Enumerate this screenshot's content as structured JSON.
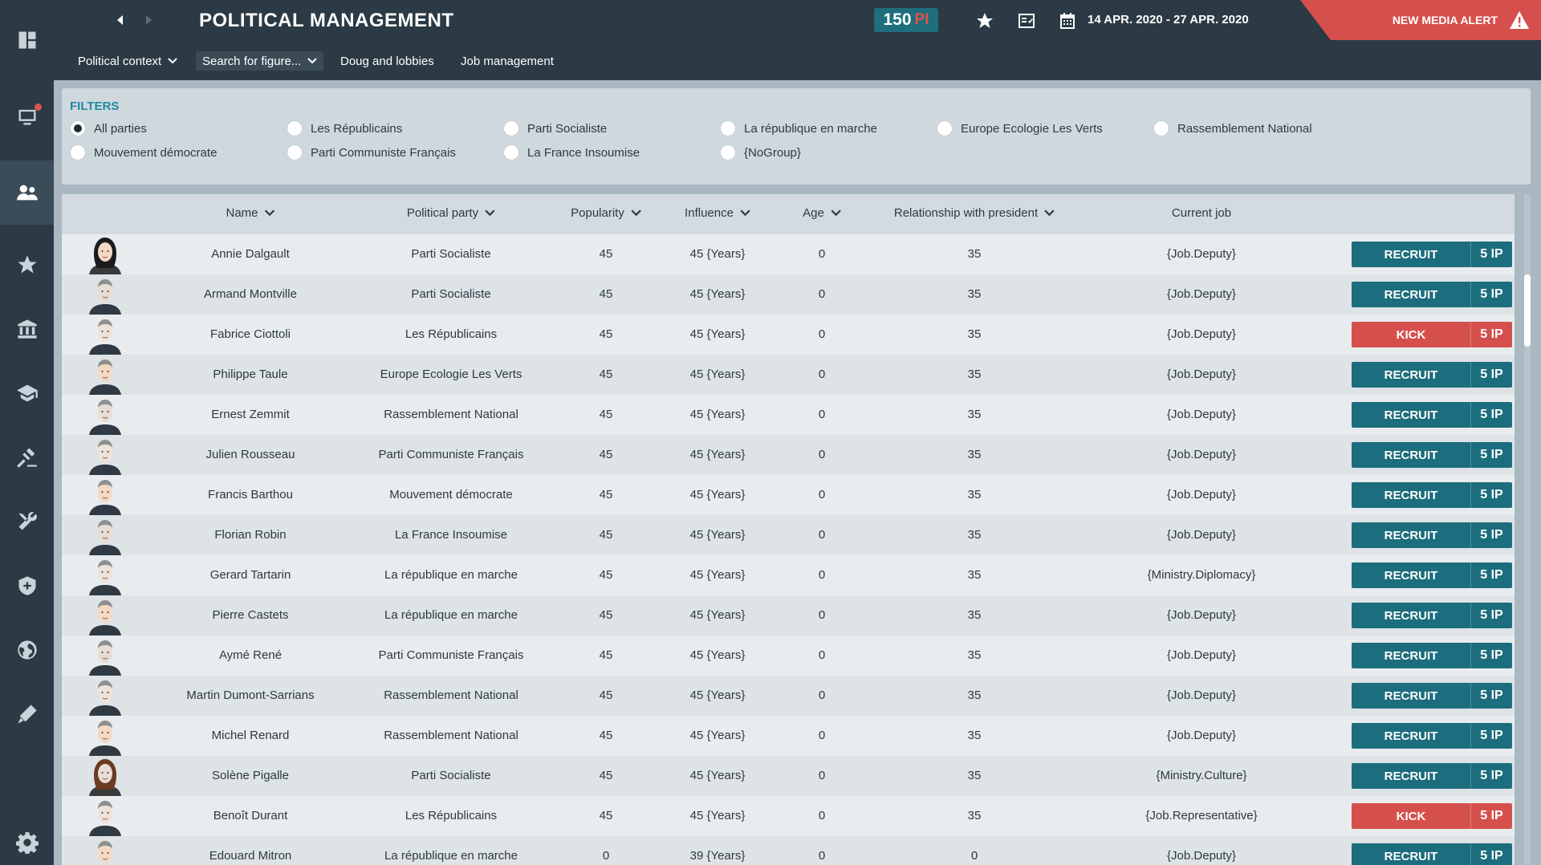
{
  "header": {
    "title": "POLITICAL MANAGEMENT",
    "pi_value": "150",
    "pi_unit": "PI",
    "date_range": "14 APR. 2020 - 27 APR. 2020",
    "media_alert": "NEW MEDIA ALERT"
  },
  "menu": {
    "political_context": "Political context",
    "search_figure": "Search for figure...",
    "doug_lobbies": "Doug and lobbies",
    "job_management": "Job management"
  },
  "sidebar": {
    "icons": [
      "dashboard-icon",
      "media-icon",
      "people-icon",
      "star-icon",
      "institution-icon",
      "education-icon",
      "justice-icon",
      "tools-icon",
      "defense-icon",
      "globe-icon",
      "health-icon",
      "settings-icon"
    ],
    "active": "people-icon"
  },
  "filters": {
    "title": "FILTERS",
    "options": [
      "All parties",
      "Les Républicains",
      "Parti Socialiste",
      "La république en marche",
      "Europe Ecologie Les Verts",
      "Rassemblement National",
      "Mouvement démocrate",
      "Parti Communiste Français",
      "La France Insoumise",
      "{NoGroup}"
    ],
    "selected": "All parties"
  },
  "table": {
    "columns": [
      "Name",
      "Political party",
      "Popularity",
      "Influence",
      "Age",
      "Relationship with president",
      "Current job"
    ],
    "rows": [
      {
        "name": "Annie Dalgault",
        "party": "Parti Socialiste",
        "popularity": "45",
        "influence": "45 {Years}",
        "age": "0",
        "relationship": "35",
        "job": "{Job.Deputy}",
        "action": "RECRUIT",
        "cost": "5 IP"
      },
      {
        "name": "Armand Montville",
        "party": "Parti Socialiste",
        "popularity": "45",
        "influence": "45 {Years}",
        "age": "0",
        "relationship": "35",
        "job": "{Job.Deputy}",
        "action": "RECRUIT",
        "cost": "5 IP"
      },
      {
        "name": "Fabrice Ciottoli",
        "party": "Les Républicains",
        "popularity": "45",
        "influence": "45 {Years}",
        "age": "0",
        "relationship": "35",
        "job": "{Job.Deputy}",
        "action": "KICK",
        "cost": "5 IP"
      },
      {
        "name": "Philippe Taule",
        "party": "Europe Ecologie Les Verts",
        "popularity": "45",
        "influence": "45 {Years}",
        "age": "0",
        "relationship": "35",
        "job": "{Job.Deputy}",
        "action": "RECRUIT",
        "cost": "5 IP"
      },
      {
        "name": "Ernest Zemmit",
        "party": "Rassemblement National",
        "popularity": "45",
        "influence": "45 {Years}",
        "age": "0",
        "relationship": "35",
        "job": "{Job.Deputy}",
        "action": "RECRUIT",
        "cost": "5 IP"
      },
      {
        "name": "Julien Rousseau",
        "party": "Parti Communiste Français",
        "popularity": "45",
        "influence": "45 {Years}",
        "age": "0",
        "relationship": "35",
        "job": "{Job.Deputy}",
        "action": "RECRUIT",
        "cost": "5 IP"
      },
      {
        "name": "Francis Barthou",
        "party": "Mouvement démocrate",
        "popularity": "45",
        "influence": "45 {Years}",
        "age": "0",
        "relationship": "35",
        "job": "{Job.Deputy}",
        "action": "RECRUIT",
        "cost": "5 IP"
      },
      {
        "name": "Florian Robin",
        "party": "La France Insoumise",
        "popularity": "45",
        "influence": "45 {Years}",
        "age": "0",
        "relationship": "35",
        "job": "{Job.Deputy}",
        "action": "RECRUIT",
        "cost": "5 IP"
      },
      {
        "name": "Gerard Tartarin",
        "party": "La république en marche",
        "popularity": "45",
        "influence": "45 {Years}",
        "age": "0",
        "relationship": "35",
        "job": "{Ministry.Diplomacy}",
        "action": "RECRUIT",
        "cost": "5 IP"
      },
      {
        "name": "Pierre Castets",
        "party": "La république en marche",
        "popularity": "45",
        "influence": "45 {Years}",
        "age": "0",
        "relationship": "35",
        "job": "{Job.Deputy}",
        "action": "RECRUIT",
        "cost": "5 IP"
      },
      {
        "name": "Aymé René",
        "party": "Parti Communiste Français",
        "popularity": "45",
        "influence": "45 {Years}",
        "age": "0",
        "relationship": "35",
        "job": "{Job.Deputy}",
        "action": "RECRUIT",
        "cost": "5 IP"
      },
      {
        "name": "Martin Dumont-Sarrians",
        "party": "Rassemblement National",
        "popularity": "45",
        "influence": "45 {Years}",
        "age": "0",
        "relationship": "35",
        "job": "{Job.Deputy}",
        "action": "RECRUIT",
        "cost": "5 IP"
      },
      {
        "name": "Michel Renard",
        "party": "Rassemblement National",
        "popularity": "45",
        "influence": "45 {Years}",
        "age": "0",
        "relationship": "35",
        "job": "{Job.Deputy}",
        "action": "RECRUIT",
        "cost": "5 IP"
      },
      {
        "name": "Solène Pigalle",
        "party": "Parti Socialiste",
        "popularity": "45",
        "influence": "45 {Years}",
        "age": "0",
        "relationship": "35",
        "job": "{Ministry.Culture}",
        "action": "RECRUIT",
        "cost": "5 IP"
      },
      {
        "name": "Benoît Durant",
        "party": "Les Républicains",
        "popularity": "45",
        "influence": "45 {Years}",
        "age": "0",
        "relationship": "35",
        "job": "{Job.Representative}",
        "action": "KICK",
        "cost": "5 IP"
      },
      {
        "name": "Edouard Mitron",
        "party": "La république en marche",
        "popularity": "0",
        "influence": "39 {Years}",
        "age": "0",
        "relationship": "0",
        "job": "{Job.Deputy}",
        "action": "RECRUIT",
        "cost": "5 IP"
      }
    ]
  },
  "colors": {
    "accent": "#1c6d7d",
    "danger": "#d5504c",
    "background": "#2b3a44"
  }
}
